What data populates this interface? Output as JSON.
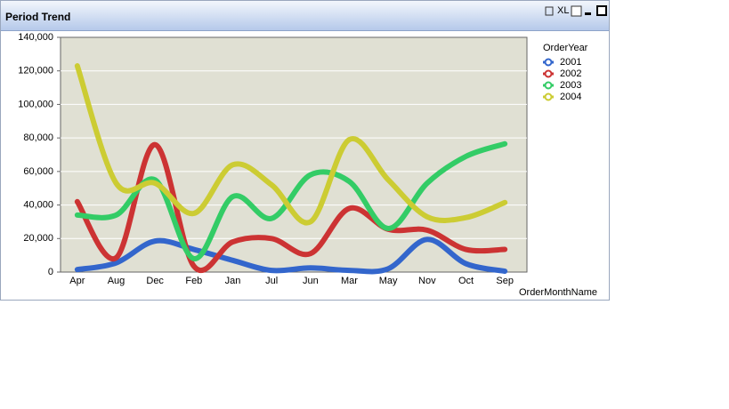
{
  "window_title": "Period Trend",
  "toolbar": {
    "xl": "XL"
  },
  "chart_data": {
    "type": "line",
    "x_label": "OrderMonthName",
    "legend_title": "OrderYear",
    "legend": "right",
    "grid": true,
    "smooth": true,
    "categories": [
      "Apr",
      "Aug",
      "Dec",
      "Feb",
      "Jan",
      "Jul",
      "Jun",
      "Mar",
      "May",
      "Nov",
      "Oct",
      "Sep"
    ],
    "ylim": [
      0,
      140000
    ],
    "yticks": [
      0,
      {
        "value": 20000,
        "label": "20,000"
      },
      {
        "value": 40000,
        "label": "40,000"
      },
      {
        "value": 60000,
        "label": "60,000"
      },
      {
        "value": 80000,
        "label": "80,000"
      },
      {
        "value": 100000,
        "label": "100,000"
      },
      {
        "value": 120000,
        "label": "120,000"
      },
      {
        "value": 140000,
        "label": "140,000"
      }
    ],
    "series": [
      {
        "name": "2001",
        "color": "#3366cc",
        "values": [
          1500,
          5500,
          18500,
          13500,
          7000,
          1000,
          2500,
          1000,
          2000,
          19500,
          5000,
          500
        ]
      },
      {
        "name": "2002",
        "color": "#cc3333",
        "values": [
          42000,
          8500,
          76000,
          3500,
          18000,
          20000,
          11000,
          38000,
          25500,
          25000,
          13500,
          13500
        ]
      },
      {
        "name": "2003",
        "color": "#33cc66",
        "values": [
          34000,
          34000,
          55000,
          8000,
          45000,
          32000,
          58000,
          54000,
          26000,
          53000,
          69000,
          76500
        ]
      },
      {
        "name": "2004",
        "color": "#cccc33",
        "values": [
          123000,
          53000,
          53000,
          35000,
          64000,
          52000,
          30000,
          79000,
          55000,
          33000,
          32500,
          41500
        ]
      }
    ]
  }
}
